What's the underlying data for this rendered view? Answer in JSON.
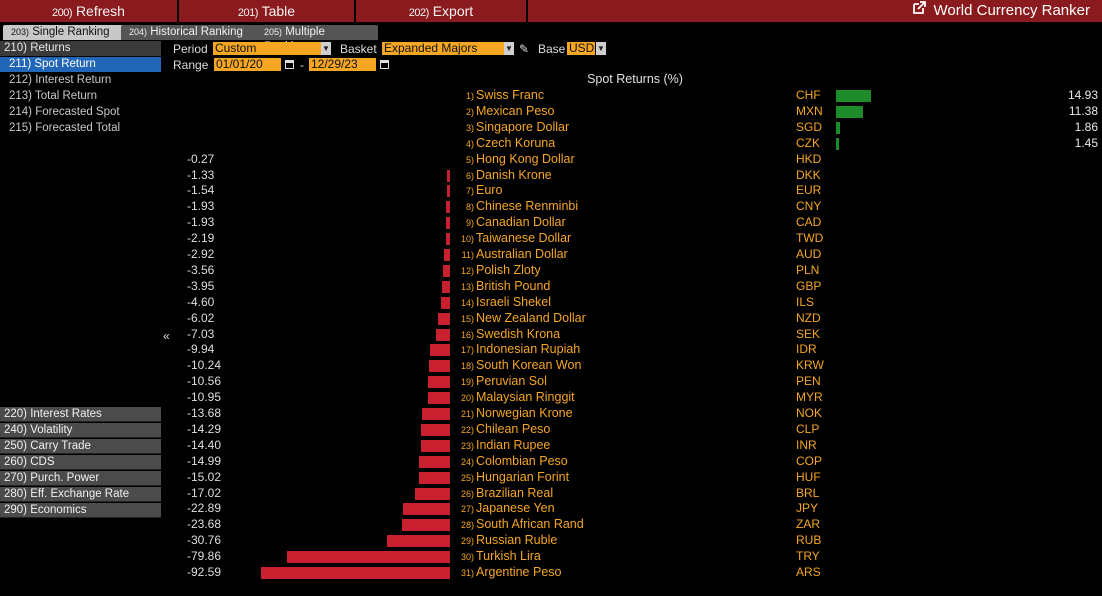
{
  "toolbar": {
    "refresh": {
      "num": "200)",
      "label": "Refresh"
    },
    "table": {
      "num": "201)",
      "label": "Table"
    },
    "export": {
      "num": "202)",
      "label": "Export"
    },
    "title": "World Currency Ranker"
  },
  "tabs": [
    {
      "num": "203)",
      "label": "Single Ranking"
    },
    {
      "num": "204)",
      "label": "Historical Ranking"
    },
    {
      "num": "205)",
      "label": "Multiple Ranking"
    }
  ],
  "sidebar": {
    "returns": {
      "label": "210) Returns",
      "items": [
        "211) Spot Return",
        "212) Interest Return",
        "213) Total Return",
        "214) Forecasted Spot",
        "215) Forecasted Total"
      ]
    },
    "categories": [
      "220) Interest Rates",
      "240) Volatility",
      "250) Carry Trade",
      "260) CDS",
      "270) Purch. Power",
      "280) Eff. Exchange Rate",
      "290) Economics"
    ]
  },
  "controls": {
    "period_label": "Period",
    "period_value": "Custom",
    "basket_label": "Basket",
    "basket_value": "Expanded Majors",
    "base_label": "Base",
    "base_value": "USD",
    "range_label": "Range",
    "range_start": "01/01/20",
    "range_sep": "-",
    "range_end": "12/29/23"
  },
  "colors": {
    "negative": "#c8202f",
    "positive": "#1e8c2a",
    "accent": "#f5a623",
    "toolbar": "#8a1a1d"
  },
  "chart_data": {
    "type": "bar",
    "title": "Spot Returns (%)",
    "rows": [
      {
        "rank": "1)",
        "name": "Swiss Franc",
        "code": "CHF",
        "value": 14.93
      },
      {
        "rank": "2)",
        "name": "Mexican Peso",
        "code": "MXN",
        "value": 11.38
      },
      {
        "rank": "3)",
        "name": "Singapore Dollar",
        "code": "SGD",
        "value": 1.86
      },
      {
        "rank": "4)",
        "name": "Czech Koruna",
        "code": "CZK",
        "value": 1.45
      },
      {
        "rank": "5)",
        "name": "Hong Kong Dollar",
        "code": "HKD",
        "value": -0.27
      },
      {
        "rank": "6)",
        "name": "Danish Krone",
        "code": "DKK",
        "value": -1.33
      },
      {
        "rank": "7)",
        "name": "Euro",
        "code": "EUR",
        "value": -1.54
      },
      {
        "rank": "8)",
        "name": "Chinese Renminbi",
        "code": "CNY",
        "value": -1.93
      },
      {
        "rank": "9)",
        "name": "Canadian Dollar",
        "code": "CAD",
        "value": -1.93
      },
      {
        "rank": "10)",
        "name": "Taiwanese Dollar",
        "code": "TWD",
        "value": -2.19
      },
      {
        "rank": "11)",
        "name": "Australian Dollar",
        "code": "AUD",
        "value": -2.92
      },
      {
        "rank": "12)",
        "name": "Polish Zloty",
        "code": "PLN",
        "value": -3.56
      },
      {
        "rank": "13)",
        "name": "British Pound",
        "code": "GBP",
        "value": -3.95
      },
      {
        "rank": "14)",
        "name": "Israeli Shekel",
        "code": "ILS",
        "value": -4.6
      },
      {
        "rank": "15)",
        "name": "New Zealand Dollar",
        "code": "NZD",
        "value": -6.02
      },
      {
        "rank": "16)",
        "name": "Swedish Krona",
        "code": "SEK",
        "value": -7.03
      },
      {
        "rank": "17)",
        "name": "Indonesian Rupiah",
        "code": "IDR",
        "value": -9.94
      },
      {
        "rank": "18)",
        "name": "South Korean Won",
        "code": "KRW",
        "value": -10.24
      },
      {
        "rank": "19)",
        "name": "Peruvian Sol",
        "code": "PEN",
        "value": -10.56
      },
      {
        "rank": "20)",
        "name": "Malaysian Ringgit",
        "code": "MYR",
        "value": -10.95
      },
      {
        "rank": "21)",
        "name": "Norwegian Krone",
        "code": "NOK",
        "value": -13.68
      },
      {
        "rank": "22)",
        "name": "Chilean Peso",
        "code": "CLP",
        "value": -14.29
      },
      {
        "rank": "23)",
        "name": "Indian Rupee",
        "code": "INR",
        "value": -14.4
      },
      {
        "rank": "24)",
        "name": "Colombian Peso",
        "code": "COP",
        "value": -14.99
      },
      {
        "rank": "25)",
        "name": "Hungarian Forint",
        "code": "HUF",
        "value": -15.02
      },
      {
        "rank": "26)",
        "name": "Brazilian Real",
        "code": "BRL",
        "value": -17.02
      },
      {
        "rank": "27)",
        "name": "Japanese Yen",
        "code": "JPY",
        "value": -22.89
      },
      {
        "rank": "28)",
        "name": "South African Rand",
        "code": "ZAR",
        "value": -23.68
      },
      {
        "rank": "29)",
        "name": "Russian Ruble",
        "code": "RUB",
        "value": -30.76
      },
      {
        "rank": "30)",
        "name": "Turkish Lira",
        "code": "TRY",
        "value": -79.86
      },
      {
        "rank": "31)",
        "name": "Argentine Peso",
        "code": "ARS",
        "value": -92.59
      }
    ]
  }
}
